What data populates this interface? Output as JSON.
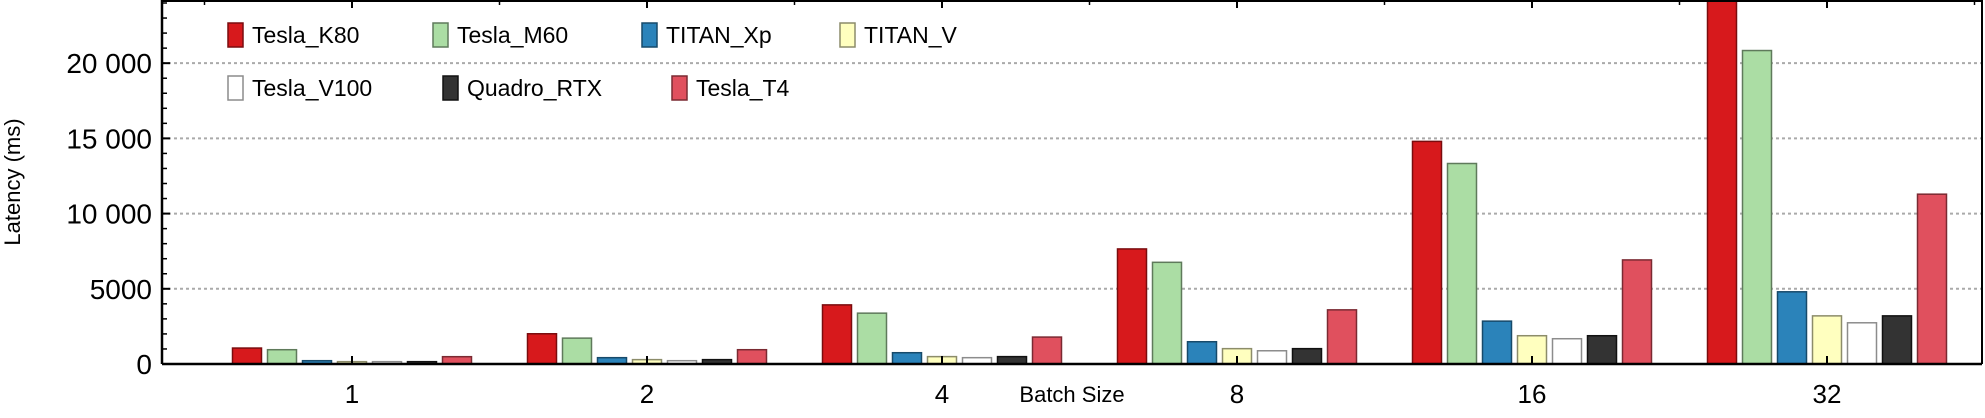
{
  "chart_data": {
    "type": "bar",
    "title": "",
    "xlabel": "Batch Size",
    "ylabel": "Latency (ms)",
    "categories": [
      "1",
      "2",
      "4",
      "8",
      "16",
      "32"
    ],
    "ylim": [
      0,
      24200
    ],
    "yticks": [
      0,
      5000,
      10000,
      15000,
      20000
    ],
    "ytick_labels": [
      "0",
      "5000",
      "10 000",
      "15 000",
      "20 000"
    ],
    "grid": true,
    "legend_position": "top-left",
    "series": [
      {
        "name": "Tesla_K80",
        "color": "#d7191c",
        "edge": "#7a0c0e",
        "values": [
          1060,
          2010,
          3930,
          7650,
          14800,
          24500
        ]
      },
      {
        "name": "Tesla_M60",
        "color": "#abdda4",
        "edge": "#5f7a5b",
        "values": [
          950,
          1720,
          3380,
          6760,
          13330,
          20840
        ]
      },
      {
        "name": "TITAN_Xp",
        "color": "#2b83ba",
        "edge": "#174a6a",
        "values": [
          220,
          420,
          750,
          1480,
          2850,
          4800
        ]
      },
      {
        "name": "TITAN_V",
        "color": "#ffffbf",
        "edge": "#8c8c6a",
        "values": [
          155,
          290,
          490,
          1020,
          1880,
          3200
        ]
      },
      {
        "name": "Tesla_V100",
        "color": "#ffffff",
        "edge": "#8c8c8c",
        "values": [
          155,
          220,
          420,
          880,
          1680,
          2740
        ]
      },
      {
        "name": "Quadro_RTX",
        "color": "#333333",
        "edge": "#111111",
        "values": [
          155,
          290,
          490,
          1020,
          1880,
          3200
        ]
      },
      {
        "name": "Tesla_T4",
        "color": "#e0505e",
        "edge": "#7a2a32",
        "values": [
          486,
          950,
          1790,
          3600,
          6920,
          11290
        ]
      }
    ]
  }
}
